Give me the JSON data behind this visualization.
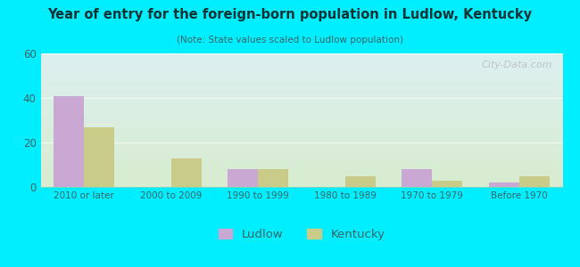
{
  "title": "Year of entry for the foreign-born population in Ludlow, Kentucky",
  "subtitle": "(Note: State values scaled to Ludlow population)",
  "categories": [
    "2010 or later",
    "2000 to 2009",
    "1990 to 1999",
    "1980 to 1989",
    "1970 to 1979",
    "Before 1970"
  ],
  "ludlow_values": [
    41,
    0,
    8,
    0,
    8,
    2
  ],
  "kentucky_values": [
    27,
    13,
    8,
    5,
    3,
    5
  ],
  "ludlow_color": "#c9a8d4",
  "kentucky_color": "#c8cc88",
  "background_outer": "#00eeff",
  "gradient_top": "#ddf0f0",
  "gradient_bottom": "#d8ecd0",
  "title_color": "#003333",
  "subtitle_color": "#336666",
  "tick_color": "#336666",
  "ylim": [
    0,
    60
  ],
  "yticks": [
    0,
    20,
    40,
    60
  ],
  "bar_width": 0.35,
  "legend_labels": [
    "Ludlow",
    "Kentucky"
  ],
  "watermark": "City-Data.com"
}
